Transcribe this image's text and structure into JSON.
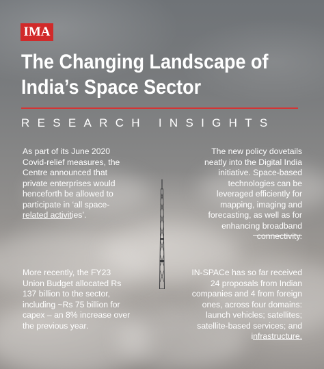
{
  "brand": {
    "logo_text": "IMA",
    "logo_color": "#d12a2a"
  },
  "header": {
    "title_line1": "The Changing Landscape of",
    "title_line2": "India’s Space Sector",
    "subtitle": "RESEARCH INSIGHTS",
    "rule_color": "#d33535"
  },
  "blocks": [
    {
      "text": "As part of its June 2020 Covid-relief measures, the Centre announced that private enterprises would henceforth be allowed to participate in ‘all space-related activities’."
    },
    {
      "text": "The new policy dovetails neatly into the Digital India initiative. Space-based technologies can be leveraged efficiently for mapping, imaging and forecasting, as well as for enhancing broadband connectivity."
    },
    {
      "text": "More recently, the FY23 Union Budget allocated Rs 137 billion to the sector, including ~Rs 75 billion for capex – an 8% increase over the previous year."
    },
    {
      "text": "IN-SPACe has so far received 24 proposals from Indian companies and 4 from foreign ones, across four domains: launch vehicles; satellites; satellite-based services; and infrastructure."
    }
  ]
}
